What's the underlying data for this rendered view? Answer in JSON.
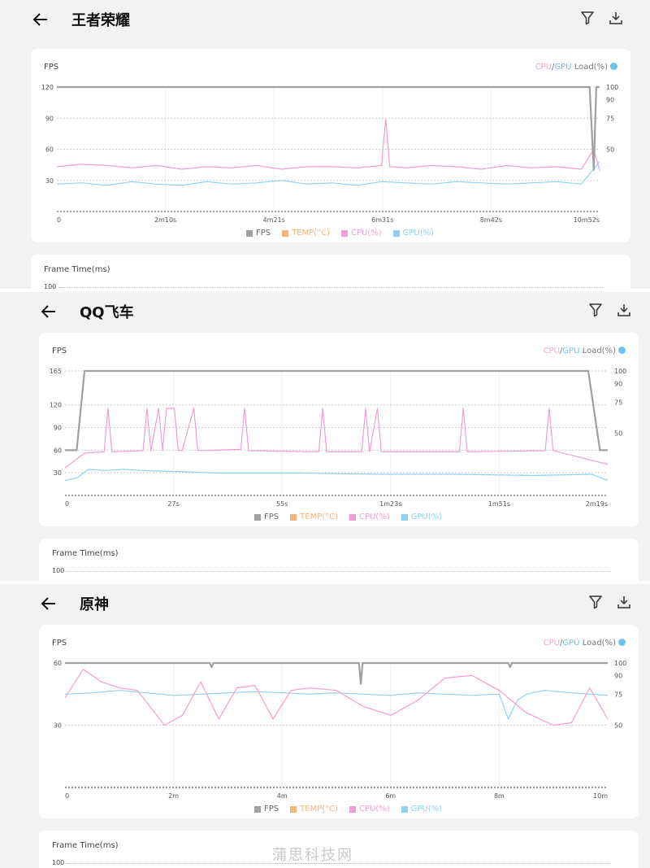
{
  "panels": [
    {
      "title": "王者荣耀",
      "fps_label": "FPS",
      "right_label_cpu": "CPU",
      "right_label_sep": "/",
      "right_label_gpu": "GPU",
      "right_label_rest": " Load(%)",
      "frametime_label": "Frame Time(ms)",
      "frametime_tick": "100",
      "legend": [
        "FPS",
        "TEMP(°C)",
        "CPU(%)",
        "GPU(%)"
      ]
    },
    {
      "title": "QQ飞车",
      "fps_label": "FPS",
      "right_label_cpu": "CPU",
      "right_label_sep": "/",
      "right_label_gpu": "GPU",
      "right_label_rest": " Load(%)",
      "frametime_label": "Frame Time(ms)",
      "frametime_tick": "100",
      "legend": [
        "FPS",
        "TEMP(°C)",
        "CPU(%)",
        "GPU(%)"
      ]
    },
    {
      "title": "原神",
      "fps_label": "FPS",
      "right_label_cpu": "CPU",
      "right_label_sep": "/",
      "right_label_gpu": "GPU",
      "right_label_rest": " Load(%)",
      "frametime_label": "Frame Time(ms)",
      "frametime_tick": "100",
      "legend": [
        "FPS",
        "TEMP(°C)",
        "CPU(%)",
        "GPU(%)"
      ]
    }
  ],
  "watermark": "蒲思科技网",
  "colors": {
    "fps": "#a0a0a0",
    "temp": "#f7b47a",
    "cpu": "#f29ed3",
    "gpu": "#8fd2ef",
    "legend_fps_text": "#666666"
  },
  "chart_data": [
    {
      "type": "line",
      "x_ticks": [
        "0",
        "2m10s",
        "4m21s",
        "6m31s",
        "8m42s",
        "10m52s"
      ],
      "y_left_ticks": [
        30,
        60,
        90,
        120
      ],
      "y_left_range": [
        0,
        120
      ],
      "y_right_ticks": [
        50,
        75,
        90,
        100
      ],
      "y_right_range": [
        0,
        100
      ],
      "duration_s": 652,
      "series": [
        {
          "name": "FPS",
          "axis": "left",
          "x": [
            0,
            640,
            645,
            648,
            652
          ],
          "y": [
            120,
            120,
            40,
            120,
            120
          ]
        },
        {
          "name": "CPU(%)",
          "axis": "right",
          "x": [
            0,
            30,
            60,
            90,
            120,
            150,
            180,
            210,
            240,
            270,
            300,
            330,
            360,
            390,
            395,
            400,
            420,
            450,
            480,
            510,
            540,
            570,
            600,
            630,
            645,
            652
          ],
          "y": [
            36,
            38,
            37,
            35,
            37,
            34,
            36,
            35,
            37,
            34,
            36,
            36,
            35,
            37,
            74,
            36,
            35,
            37,
            36,
            34,
            37,
            35,
            36,
            34,
            50,
            33
          ]
        },
        {
          "name": "GPU(%)",
          "axis": "right",
          "x": [
            0,
            30,
            60,
            90,
            120,
            150,
            180,
            210,
            240,
            270,
            300,
            330,
            360,
            390,
            420,
            450,
            480,
            510,
            540,
            570,
            600,
            630,
            652
          ],
          "y": [
            22,
            23,
            21,
            24,
            22,
            21,
            24,
            22,
            23,
            25,
            22,
            23,
            21,
            24,
            23,
            22,
            24,
            23,
            22,
            23,
            24,
            22,
            40
          ]
        }
      ]
    },
    {
      "type": "line",
      "x_ticks": [
        "0",
        "27s",
        "55s",
        "1m23s",
        "1m51s",
        "2m19s"
      ],
      "y_left_ticks": [
        30,
        60,
        90,
        120,
        165
      ],
      "y_left_range": [
        0,
        165
      ],
      "y_right_ticks": [
        50,
        75,
        90,
        100
      ],
      "y_right_range": [
        0,
        100
      ],
      "duration_s": 139,
      "series": [
        {
          "name": "FPS",
          "axis": "left",
          "x": [
            0,
            3,
            5,
            134,
            137,
            139
          ],
          "y": [
            60,
            60,
            165,
            165,
            60,
            60
          ]
        },
        {
          "name": "CPU(%)",
          "axis": "right",
          "x": [
            0,
            5,
            10,
            11,
            12,
            20,
            21,
            22,
            24,
            25,
            26,
            28,
            29,
            30,
            33,
            34,
            35,
            45,
            46,
            47,
            65,
            66,
            67,
            76,
            77,
            78,
            80,
            81,
            82,
            101,
            102,
            103,
            123,
            124,
            125,
            139
          ],
          "y": [
            22,
            34,
            35,
            70,
            35,
            36,
            70,
            36,
            70,
            36,
            70,
            70,
            36,
            36,
            70,
            36,
            36,
            37,
            70,
            36,
            35,
            70,
            35,
            35,
            70,
            35,
            70,
            35,
            35,
            35,
            70,
            35,
            36,
            70,
            36,
            25
          ]
        },
        {
          "name": "GPU(%)",
          "axis": "right",
          "x": [
            0,
            3,
            6,
            10,
            15,
            20,
            30,
            40,
            60,
            80,
            100,
            120,
            135,
            139
          ],
          "y": [
            12,
            14,
            21,
            20,
            21,
            20,
            19,
            18,
            18,
            17,
            17,
            16,
            17,
            12
          ]
        }
      ]
    },
    {
      "type": "line",
      "x_ticks": [
        "0",
        "2m",
        "4m",
        "6m",
        "8m",
        "10m"
      ],
      "y_left_ticks": [
        30,
        60
      ],
      "y_left_range": [
        0,
        60
      ],
      "y_right_ticks": [
        50,
        75,
        90,
        100
      ],
      "y_right_range": [
        0,
        100
      ],
      "duration_s": 600,
      "series": [
        {
          "name": "FPS",
          "axis": "left",
          "x": [
            0,
            160,
            162,
            164,
            325,
            327,
            329,
            490,
            492,
            494,
            600
          ],
          "y": [
            60,
            60,
            58,
            60,
            60,
            50,
            60,
            60,
            58,
            60,
            60
          ]
        },
        {
          "name": "CPU(%)",
          "axis": "right",
          "x": [
            0,
            20,
            40,
            60,
            80,
            110,
            130,
            150,
            170,
            190,
            210,
            230,
            250,
            270,
            300,
            330,
            360,
            390,
            420,
            450,
            480,
            510,
            540,
            560,
            580,
            600
          ],
          "y": [
            72,
            95,
            85,
            80,
            78,
            50,
            58,
            85,
            55,
            80,
            82,
            55,
            78,
            80,
            78,
            65,
            58,
            70,
            88,
            90,
            78,
            60,
            50,
            52,
            80,
            55
          ]
        },
        {
          "name": "GPU(%)",
          "axis": "right",
          "x": [
            0,
            30,
            60,
            90,
            120,
            150,
            180,
            210,
            240,
            270,
            300,
            330,
            360,
            390,
            420,
            450,
            480,
            490,
            500,
            510,
            530,
            560,
            600
          ],
          "y": [
            75,
            76,
            78,
            76,
            74,
            75,
            76,
            77,
            76,
            75,
            76,
            75,
            74,
            76,
            75,
            74,
            75,
            55,
            70,
            75,
            78,
            76,
            74
          ]
        }
      ]
    }
  ]
}
